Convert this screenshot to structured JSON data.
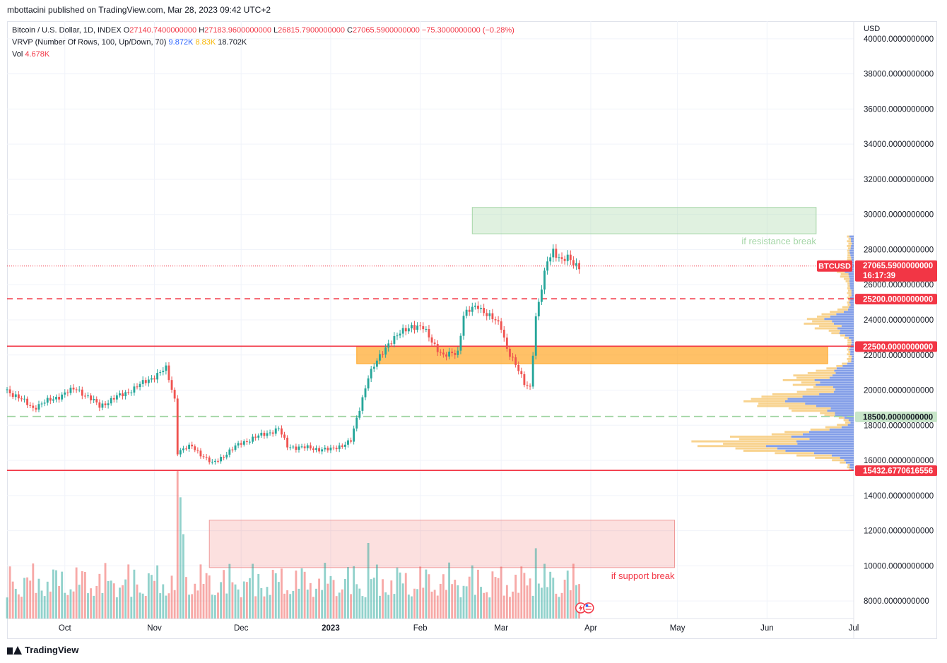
{
  "header": {
    "publisher": "mbottacini published on TradingView.com, Mar 28, 2023 09:42 UTC+2"
  },
  "legend": {
    "symbol": "Bitcoin / U.S. Dollar, 1D, INDEX",
    "open_label": "O",
    "open": "27140.7400000000",
    "high_label": "H",
    "high": "27183.9600000000",
    "low_label": "L",
    "low": "26815.7900000000",
    "close_label": "C",
    "close": "27065.5900000000",
    "change": "−75.3000000000 (−0.28%)",
    "vrvp_label": "VRVP (Number Of Rows, 100, Up/Down, 70)",
    "vrvp_up": "9.872K",
    "vrvp_down": "8.83K",
    "vrvp_total": "18.702K",
    "vol_label": "Vol",
    "vol": "4.678K"
  },
  "footer": {
    "brand": "TradingView"
  },
  "colors": {
    "up": "#26a69a",
    "down": "#ef5350",
    "red_line": "#f23645",
    "orange_zone": "#ffb74d",
    "green_zone": "#c8e6c9",
    "pink_zone": "#ffcdd2",
    "vp_up": "#5b7fe0",
    "vp_down": "#f5c469"
  },
  "chart_data": {
    "type": "candlestick",
    "symbol_tag": "BTCUSD",
    "currency": "USD",
    "ylim": [
      7000,
      41000
    ],
    "y_ticks": [
      8000,
      10000,
      12000,
      14000,
      16000,
      18000,
      20000,
      22000,
      24000,
      26000,
      28000,
      30000,
      32000,
      34000,
      36000,
      38000,
      40000
    ],
    "y_tick_labels": [
      "8000.0000000000",
      "10000.0000000000",
      "12000.0000000000",
      "14000.0000000000",
      "16000.0000000000",
      "18000.0000000000",
      "20000.0000000000",
      "22000.0000000000",
      "24000.0000000000",
      "26000.0000000000",
      "28000.0000000000",
      "30000.0000000000",
      "32000.0000000000",
      "34000.0000000000",
      "36000.0000000000",
      "38000.0000000000",
      "40000.0000000000"
    ],
    "x_labels": [
      "Oct",
      "Nov",
      "Dec",
      "2023",
      "Feb",
      "Mar",
      "Apr",
      "May",
      "Jun",
      "Jul"
    ],
    "x_label_dates": [
      "2022-10-01",
      "2022-11-01",
      "2022-12-01",
      "2023-01-01",
      "2023-02-01",
      "2023-03-01",
      "2023-04-01",
      "2023-05-01",
      "2023-06-01",
      "2023-07-01"
    ],
    "x_range": [
      "2022-09-11",
      "2023-07-01"
    ],
    "price_badges": [
      {
        "value": 27065.59,
        "label": "27065.5900000000",
        "sublabel": "16:17:39",
        "style": "last"
      },
      {
        "value": 25200,
        "label": "25200.0000000000",
        "style": "red"
      },
      {
        "value": 22500,
        "label": "22500.0000000000",
        "style": "red"
      },
      {
        "value": 18500,
        "label": "18500.0000000000",
        "style": "green"
      },
      {
        "value": 15432.68,
        "label": "15432.6770616556",
        "style": "red"
      }
    ],
    "horizontal_lines": [
      {
        "value": 25200,
        "style": "dashed",
        "color": "red"
      },
      {
        "value": 22500,
        "style": "solid",
        "color": "red"
      },
      {
        "value": 18500,
        "style": "dashed",
        "color": "green"
      },
      {
        "value": 15432.68,
        "style": "solid",
        "color": "red"
      }
    ],
    "zones": [
      {
        "name": "resistance",
        "start": "2023-02-19",
        "end": "2023-06-18",
        "low": 28900,
        "high": 30400,
        "color": "green",
        "label": "if resistance break"
      },
      {
        "name": "support",
        "start": "2023-01-10",
        "end": "2023-06-22",
        "low": 21500,
        "high": 22500,
        "color": "orange",
        "label": ""
      },
      {
        "name": "support-break",
        "start": "2022-11-20",
        "end": "2023-04-30",
        "low": 9900,
        "high": 12600,
        "color": "pink",
        "label": "if support break"
      }
    ],
    "anchors": [
      {
        "date": "2022-09-11",
        "price": 20000
      },
      {
        "date": "2022-09-20",
        "price": 19000
      },
      {
        "date": "2022-10-05",
        "price": 20100
      },
      {
        "date": "2022-10-13",
        "price": 19100
      },
      {
        "date": "2022-10-25",
        "price": 20100
      },
      {
        "date": "2022-11-05",
        "price": 21200
      },
      {
        "date": "2022-11-08",
        "price": 19500
      },
      {
        "date": "2022-11-09",
        "price": 16500
      },
      {
        "date": "2022-11-14",
        "price": 16800
      },
      {
        "date": "2022-11-21",
        "price": 15800
      },
      {
        "date": "2022-12-01",
        "price": 17000
      },
      {
        "date": "2022-12-14",
        "price": 17800
      },
      {
        "date": "2022-12-17",
        "price": 16800
      },
      {
        "date": "2023-01-01",
        "price": 16600
      },
      {
        "date": "2023-01-08",
        "price": 17100
      },
      {
        "date": "2023-01-14",
        "price": 20800
      },
      {
        "date": "2023-01-21",
        "price": 22700
      },
      {
        "date": "2023-01-29",
        "price": 23700
      },
      {
        "date": "2023-02-02",
        "price": 23500
      },
      {
        "date": "2023-02-09",
        "price": 21900
      },
      {
        "date": "2023-02-14",
        "price": 22200
      },
      {
        "date": "2023-02-16",
        "price": 24300
      },
      {
        "date": "2023-02-21",
        "price": 24800
      },
      {
        "date": "2023-03-01",
        "price": 23600
      },
      {
        "date": "2023-03-03",
        "price": 22400
      },
      {
        "date": "2023-03-09",
        "price": 20400
      },
      {
        "date": "2023-03-11",
        "price": 20200
      },
      {
        "date": "2023-03-13",
        "price": 24100
      },
      {
        "date": "2023-03-17",
        "price": 27400
      },
      {
        "date": "2023-03-19",
        "price": 28000
      },
      {
        "date": "2023-03-22",
        "price": 27300
      },
      {
        "date": "2023-03-24",
        "price": 27500
      },
      {
        "date": "2023-03-28",
        "price": 27065
      }
    ],
    "volume": {
      "pane_min": 7000,
      "max_volume_price": 15400,
      "spikes": [
        {
          "date": "2022-11-09",
          "price": 15400
        },
        {
          "date": "2022-11-10",
          "price": 13900
        },
        {
          "date": "2022-11-11",
          "price": 11800
        },
        {
          "date": "2023-01-14",
          "price": 11300
        },
        {
          "date": "2023-03-13",
          "price": 11000
        }
      ]
    },
    "volume_profile": {
      "price_min": 15400,
      "price_max": 28800,
      "peaks": [
        {
          "price": 16900,
          "width": 0.98
        },
        {
          "price": 19300,
          "width": 0.68
        },
        {
          "price": 20500,
          "width": 0.42
        },
        {
          "price": 23800,
          "width": 0.3
        },
        {
          "price": 26700,
          "width": 0.1
        }
      ]
    }
  }
}
